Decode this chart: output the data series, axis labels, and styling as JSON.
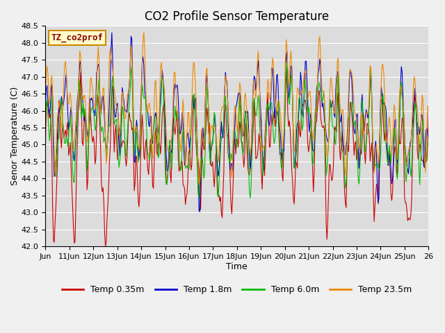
{
  "title": "CO2 Profile Sensor Temperature",
  "xlabel": "Time",
  "ylabel": "Senor Temperature (C)",
  "annotation": "TZ_co2prof",
  "ylim": [
    42.0,
    48.5
  ],
  "yticks": [
    42.0,
    42.5,
    43.0,
    43.5,
    44.0,
    44.5,
    45.0,
    45.5,
    46.0,
    46.5,
    47.0,
    47.5,
    48.0,
    48.5
  ],
  "xtick_labels": [
    "Jun",
    "11Jun",
    "12Jun",
    "13Jun",
    "14Jun",
    "15Jun",
    "16Jun",
    "17Jun",
    "18Jun",
    "19Jun",
    "20Jun",
    "21Jun",
    "22Jun",
    "23Jun",
    "24Jun",
    "25Jun",
    "26"
  ],
  "legend_labels": [
    "Temp 0.35m",
    "Temp 1.8m",
    "Temp 6.0m",
    "Temp 23.5m"
  ],
  "colors": [
    "#cc0000",
    "#0000cc",
    "#00bb00",
    "#ee8800"
  ],
  "bg_color": "#dcdcdc",
  "fig_bg": "#f0f0f0",
  "title_fontsize": 12,
  "label_fontsize": 9,
  "tick_fontsize": 8,
  "legend_fontsize": 9
}
